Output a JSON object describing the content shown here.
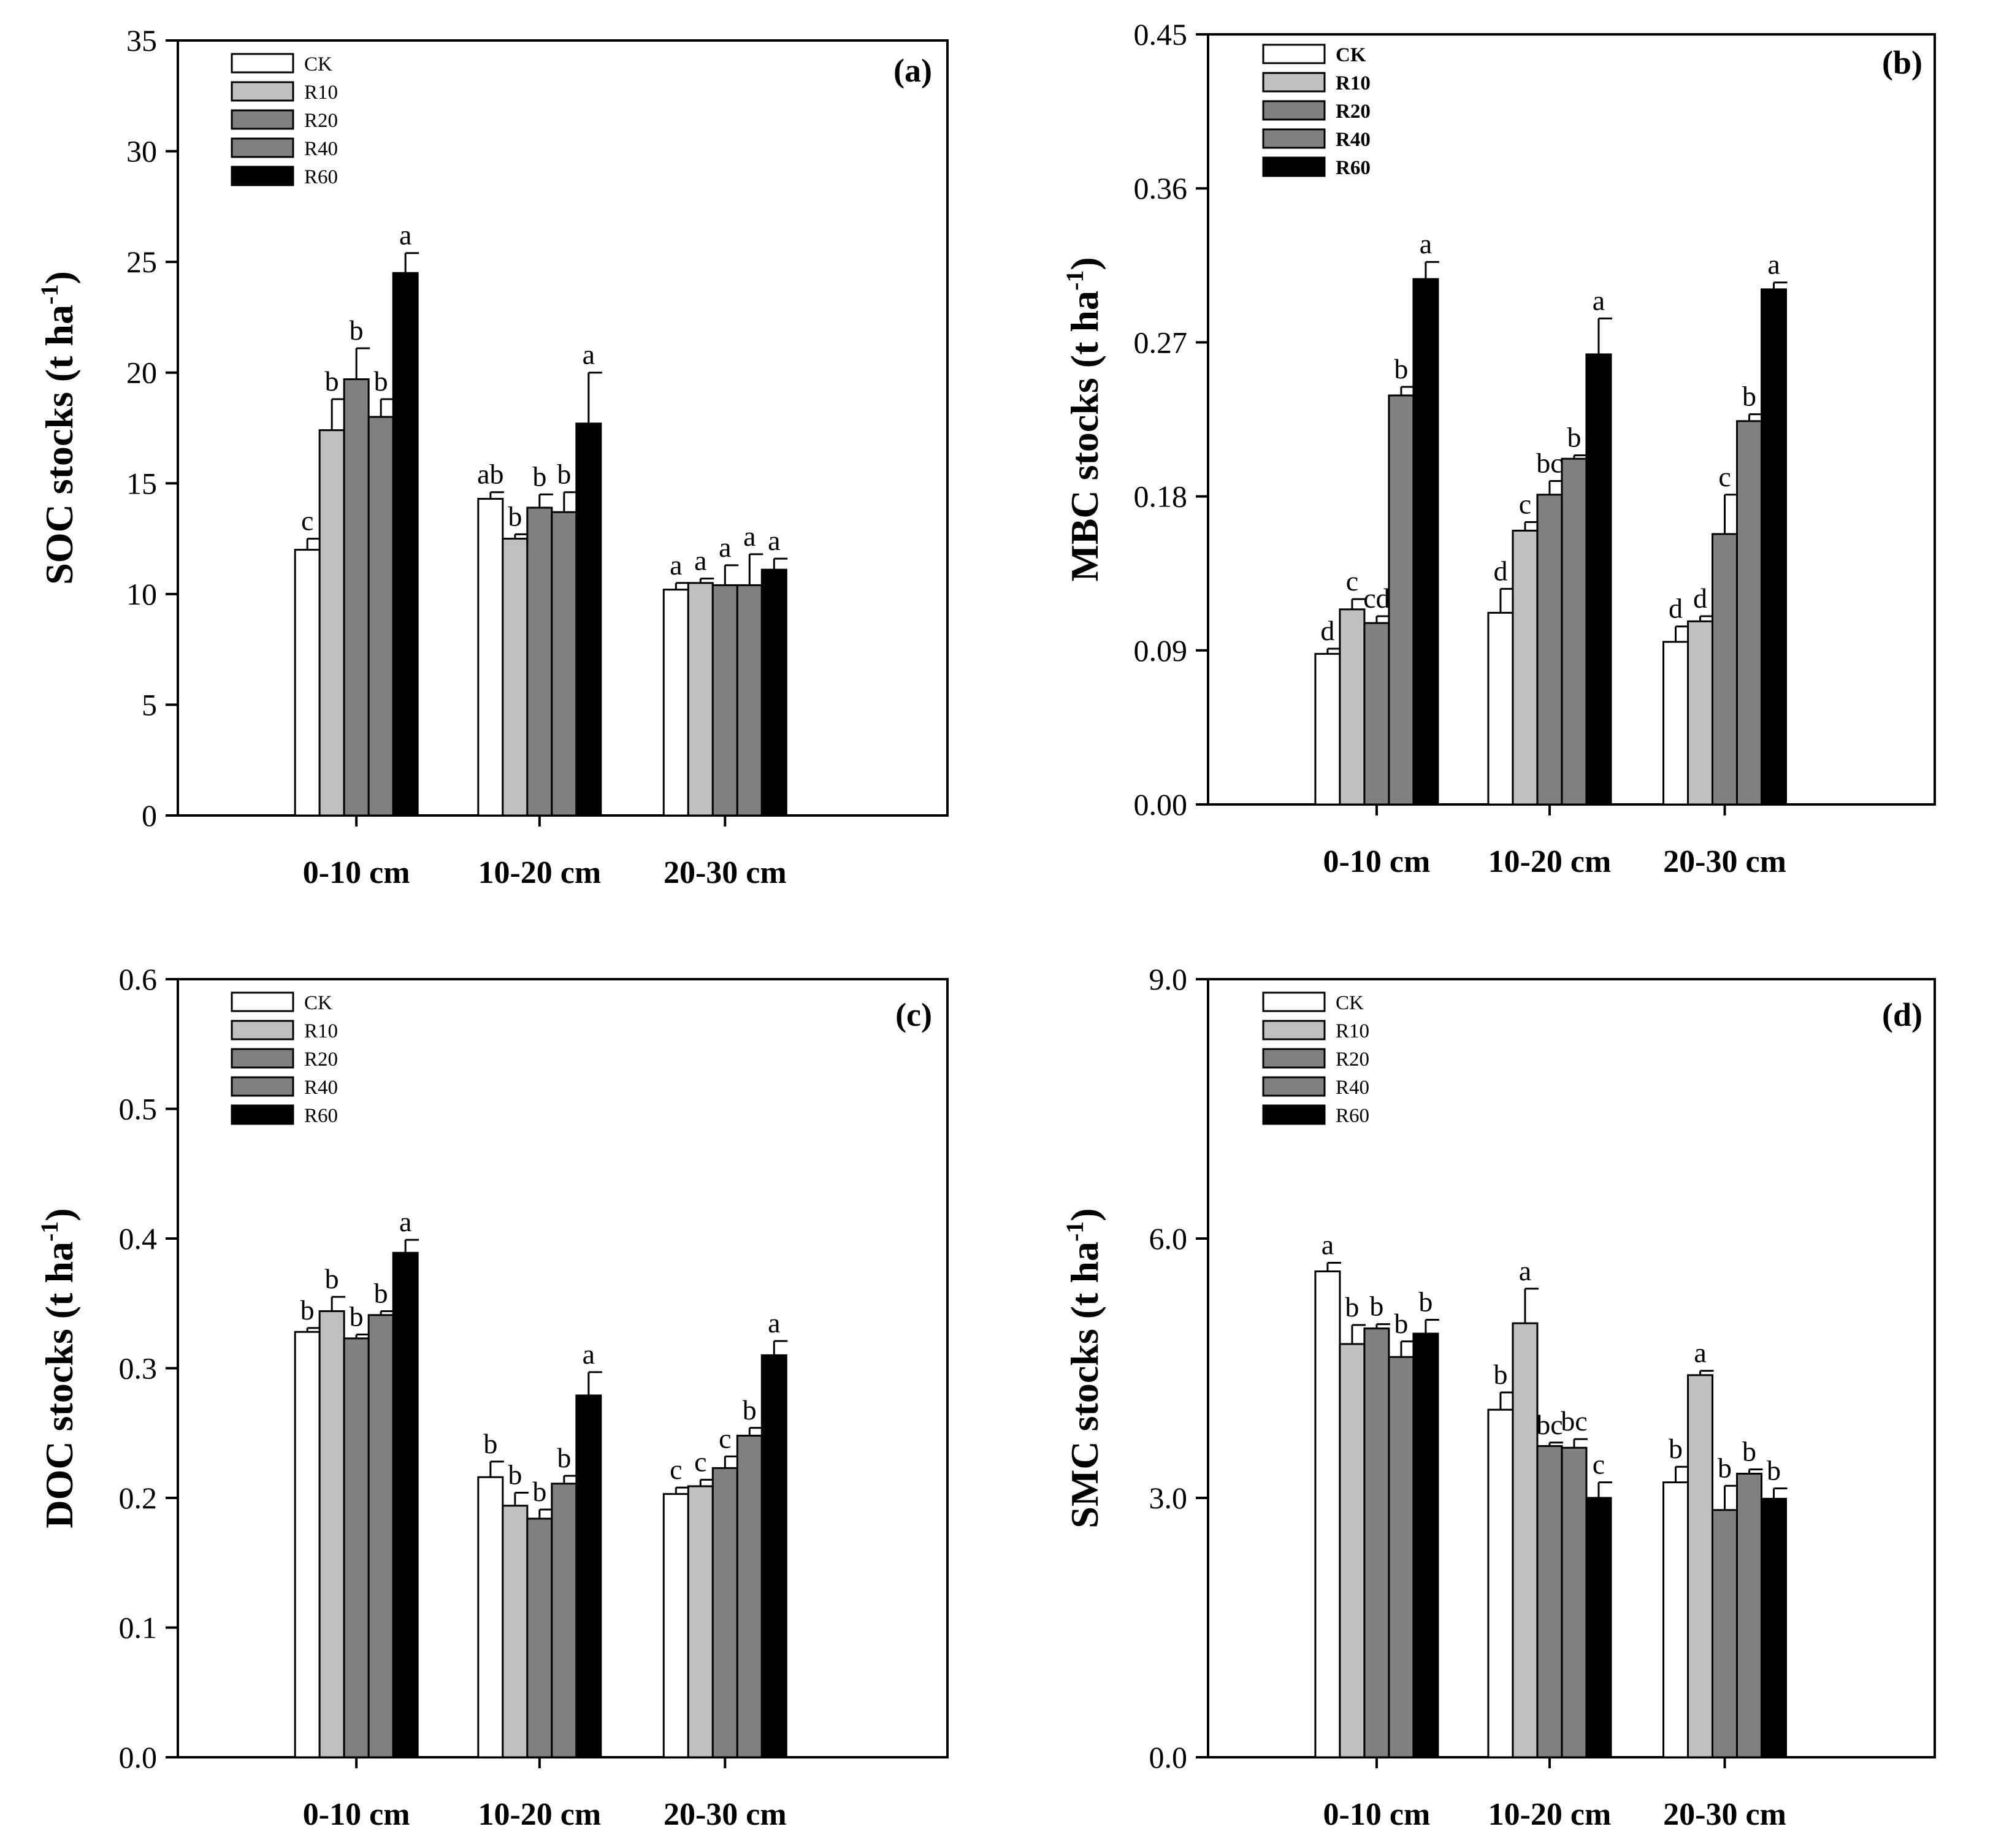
{
  "legend_colors": {
    "CK": "#ffffff",
    "R10": "#c0c0c0",
    "R20": "#808080",
    "R40": "#808080",
    "R60": "#000000"
  },
  "chart_data": [
    {
      "type": "bar",
      "panel_label": "(a)",
      "ylabel": "SOC stocks",
      "ylabel_unit": "(t ha",
      "ylabel_sup": "-1",
      "ylabel_close": ")",
      "ylim": [
        0,
        35
      ],
      "yticks": [
        0,
        5,
        10,
        15,
        20,
        25,
        30,
        35
      ],
      "ytick_labels": [
        "0",
        "5",
        "10",
        "15",
        "20",
        "25",
        "30",
        "35"
      ],
      "categories": [
        "0-10 cm",
        "10-20 cm",
        "20-30 cm"
      ],
      "legend_bold": false,
      "series": [
        {
          "name": "CK",
          "values": [
            12.0,
            14.3,
            10.2
          ],
          "errors": [
            0.5,
            0.3,
            0.3
          ],
          "letters": [
            "c",
            "ab",
            "a"
          ]
        },
        {
          "name": "R10",
          "values": [
            17.4,
            12.5,
            10.5
          ],
          "errors": [
            1.4,
            0.2,
            0.2
          ],
          "letters": [
            "b",
            "b",
            "a"
          ]
        },
        {
          "name": "R20",
          "values": [
            19.7,
            13.9,
            10.4
          ],
          "errors": [
            1.4,
            0.6,
            0.9
          ],
          "letters": [
            "b",
            "b",
            "a"
          ]
        },
        {
          "name": "R40",
          "values": [
            18.0,
            13.7,
            10.4
          ],
          "errors": [
            0.8,
            0.9,
            1.4
          ],
          "letters": [
            "b",
            "b",
            "a"
          ]
        },
        {
          "name": "R60",
          "values": [
            24.5,
            17.7,
            11.1
          ],
          "errors": [
            0.9,
            2.3,
            0.5
          ],
          "letters": [
            "a",
            "a",
            "a"
          ]
        }
      ]
    },
    {
      "type": "bar",
      "panel_label": "(b)",
      "ylabel": "MBC stocks",
      "ylabel_unit": "(t ha",
      "ylabel_sup": "-1",
      "ylabel_close": ")",
      "ylim": [
        0,
        0.45
      ],
      "yticks": [
        0,
        0.09,
        0.18,
        0.27,
        0.36,
        0.45
      ],
      "ytick_labels": [
        "0.00",
        "0.09",
        "0.18",
        "0.27",
        "0.36",
        "0.45"
      ],
      "categories": [
        "0-10 cm",
        "10-20 cm",
        "20-30 cm"
      ],
      "legend_bold": true,
      "series": [
        {
          "name": "CK",
          "values": [
            0.088,
            0.112,
            0.095
          ],
          "errors": [
            0.003,
            0.014,
            0.009
          ],
          "letters": [
            "d",
            "d",
            "d"
          ]
        },
        {
          "name": "R10",
          "values": [
            0.114,
            0.16,
            0.107
          ],
          "errors": [
            0.006,
            0.005,
            0.003
          ],
          "letters": [
            "c",
            "c",
            "d"
          ]
        },
        {
          "name": "R20",
          "values": [
            0.106,
            0.181,
            0.158
          ],
          "errors": [
            0.004,
            0.008,
            0.023
          ],
          "letters": [
            "cd",
            "bc",
            "c"
          ]
        },
        {
          "name": "R40",
          "values": [
            0.239,
            0.202,
            0.224
          ],
          "errors": [
            0.005,
            0.002,
            0.004
          ],
          "letters": [
            "b",
            "b",
            "b"
          ]
        },
        {
          "name": "R60",
          "values": [
            0.307,
            0.263,
            0.301
          ],
          "errors": [
            0.01,
            0.021,
            0.004
          ],
          "letters": [
            "a",
            "a",
            "a"
          ]
        }
      ]
    },
    {
      "type": "bar",
      "panel_label": "(c)",
      "ylabel": "DOC stocks",
      "ylabel_unit": "(t ha",
      "ylabel_sup": "-1",
      "ylabel_close": ")",
      "ylim": [
        0,
        0.6
      ],
      "yticks": [
        0,
        0.1,
        0.2,
        0.3,
        0.4,
        0.5,
        0.6
      ],
      "ytick_labels": [
        "0.0",
        "0.1",
        "0.2",
        "0.3",
        "0.4",
        "0.5",
        "0.6"
      ],
      "categories": [
        "0-10 cm",
        "10-20 cm",
        "20-30 cm"
      ],
      "legend_bold": false,
      "series": [
        {
          "name": "CK",
          "values": [
            0.328,
            0.216,
            0.203
          ],
          "errors": [
            0.003,
            0.012,
            0.005
          ],
          "letters": [
            "b",
            "b",
            "c"
          ]
        },
        {
          "name": "R10",
          "values": [
            0.344,
            0.194,
            0.209
          ],
          "errors": [
            0.011,
            0.01,
            0.005
          ],
          "letters": [
            "b",
            "b",
            "c"
          ]
        },
        {
          "name": "R20",
          "values": [
            0.323,
            0.184,
            0.223
          ],
          "errors": [
            0.003,
            0.007,
            0.009
          ],
          "letters": [
            "b",
            "b",
            "c"
          ]
        },
        {
          "name": "R40",
          "values": [
            0.341,
            0.211,
            0.248
          ],
          "errors": [
            0.003,
            0.006,
            0.006
          ],
          "letters": [
            "b",
            "b",
            "b"
          ]
        },
        {
          "name": "R60",
          "values": [
            0.389,
            0.279,
            0.31
          ],
          "errors": [
            0.01,
            0.018,
            0.011
          ],
          "letters": [
            "a",
            "a",
            "a"
          ]
        }
      ]
    },
    {
      "type": "bar",
      "panel_label": "(d)",
      "ylabel": "SMC stocks",
      "ylabel_unit": "(t ha",
      "ylabel_sup": "-1",
      "ylabel_close": ")",
      "ylim": [
        0,
        9.0
      ],
      "yticks": [
        0,
        3.0,
        6.0,
        9.0
      ],
      "ytick_labels": [
        "0.0",
        "3.0",
        "6.0",
        "9.0"
      ],
      "categories": [
        "0-10 cm",
        "10-20 cm",
        "20-30 cm"
      ],
      "legend_bold": false,
      "series": [
        {
          "name": "CK",
          "values": [
            5.62,
            4.02,
            3.18
          ],
          "errors": [
            0.1,
            0.2,
            0.18
          ],
          "letters": [
            "a",
            "b",
            "b"
          ]
        },
        {
          "name": "R10",
          "values": [
            4.78,
            5.02,
            4.42
          ],
          "errors": [
            0.22,
            0.4,
            0.05
          ],
          "letters": [
            "b",
            "a",
            "a"
          ]
        },
        {
          "name": "R20",
          "values": [
            4.96,
            3.6,
            2.86
          ],
          "errors": [
            0.05,
            0.04,
            0.28
          ],
          "letters": [
            "b",
            "bc",
            "b"
          ]
        },
        {
          "name": "R40",
          "values": [
            4.63,
            3.58,
            3.28
          ],
          "errors": [
            0.18,
            0.1,
            0.05
          ],
          "letters": [
            "b",
            "bc",
            "b"
          ]
        },
        {
          "name": "R60",
          "values": [
            4.9,
            3.0,
            2.99
          ],
          "errors": [
            0.16,
            0.18,
            0.12
          ],
          "letters": [
            "b",
            "c",
            "b"
          ]
        }
      ]
    }
  ]
}
